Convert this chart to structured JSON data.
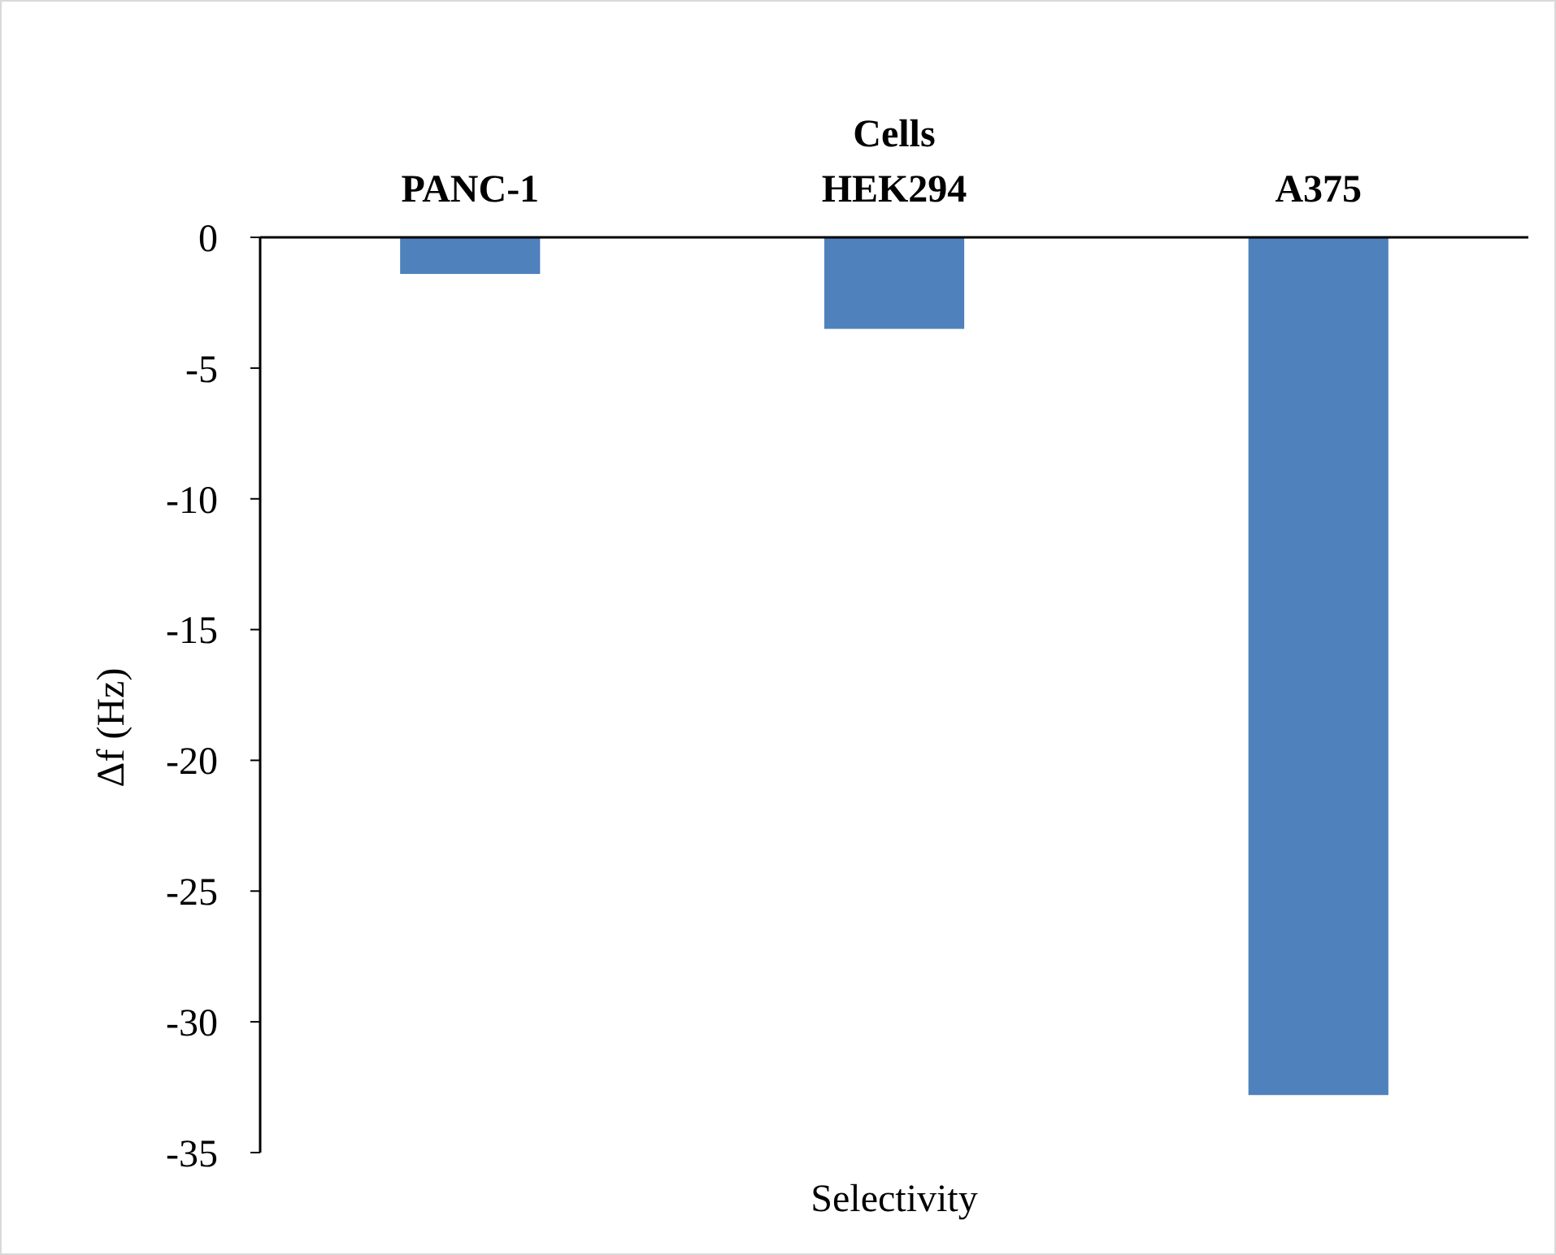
{
  "chart_data": {
    "type": "bar",
    "title": "Selectivity",
    "xlabel": "Cells",
    "ylabel": "Δf (Hz)",
    "categories": [
      "PANC-1",
      "HEK294",
      "A375"
    ],
    "values": [
      -1.4,
      -3.5,
      -32.8
    ],
    "color": "#4f81bd",
    "ylim": [
      -35,
      0
    ],
    "yticks": [
      0,
      -5,
      -10,
      -15,
      -20,
      -25,
      -30,
      -35
    ],
    "grid": false
  }
}
